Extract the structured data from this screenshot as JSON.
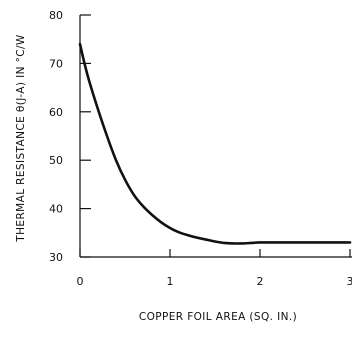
{
  "chart_data": {
    "type": "line",
    "title": "",
    "xlabel": "COPPER FOIL AREA (SQ. IN.)",
    "ylabel": "THERMAL RESISTANCE θ(J-A) IN °C/W",
    "xlim": [
      0,
      3
    ],
    "ylim": [
      30,
      80
    ],
    "xticks": [
      0,
      1,
      2,
      3
    ],
    "xtick_labels": [
      "0",
      "1",
      "2",
      "3"
    ],
    "yticks": [
      30,
      40,
      50,
      60,
      70,
      80
    ],
    "ytick_labels": [
      "30",
      "40",
      "50",
      "60",
      "70",
      "80"
    ],
    "grid": false,
    "legend": false,
    "series": [
      {
        "color": "#111111",
        "x": [
          0.0,
          0.05,
          0.1,
          0.2,
          0.3,
          0.4,
          0.5,
          0.6,
          0.7,
          0.8,
          0.9,
          1.0,
          1.1,
          1.2,
          1.3,
          1.4,
          1.5,
          1.6,
          1.7,
          1.8,
          1.9,
          2.0,
          2.2,
          2.4,
          2.6,
          2.8,
          3.0
        ],
        "y": [
          74.0,
          70.0,
          66.5,
          60.5,
          55.0,
          50.0,
          46.0,
          42.8,
          40.5,
          38.7,
          37.2,
          36.0,
          35.1,
          34.5,
          34.0,
          33.6,
          33.2,
          32.9,
          32.8,
          32.8,
          32.9,
          33.0,
          33.0,
          33.0,
          33.0,
          33.0,
          33.0
        ]
      }
    ]
  }
}
